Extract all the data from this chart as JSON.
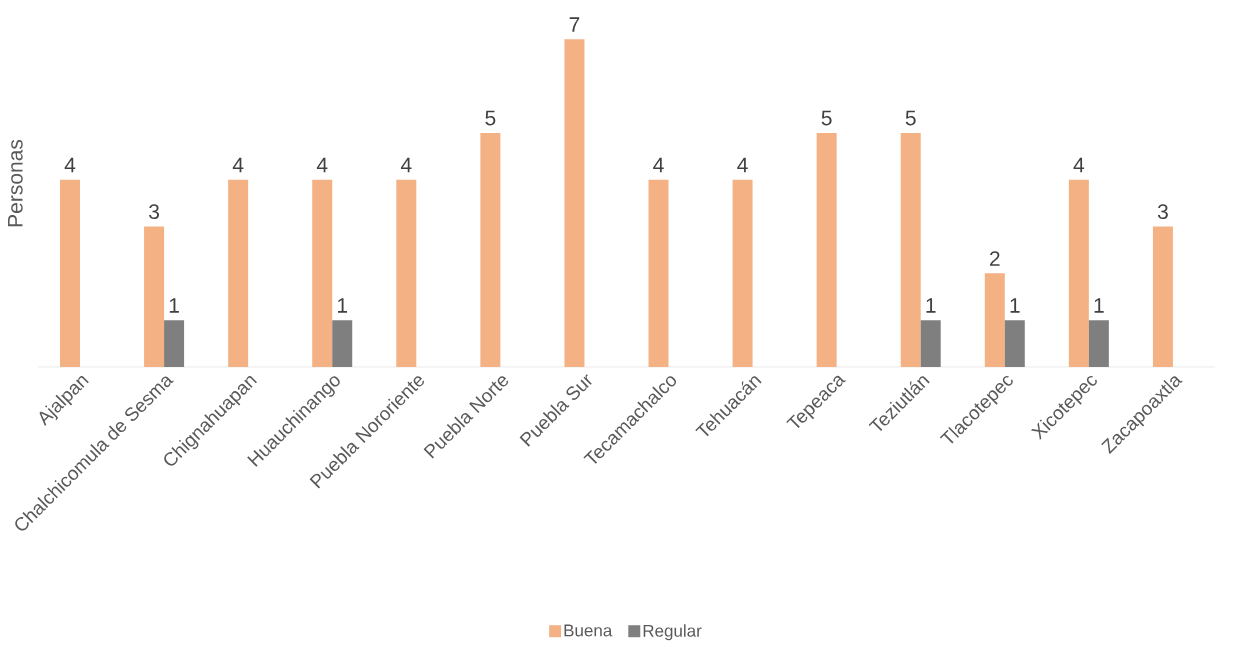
{
  "chart_data": {
    "type": "bar",
    "ylabel": "Personas",
    "categories": [
      "Ajalpan",
      "Chalchicomula de Sesma",
      "Chignahuapan",
      "Huauchinango",
      "Puebla Nororiente",
      "Puebla Norte",
      "Puebla Sur",
      "Tecamachalco",
      "Tehuacán",
      "Tepeaca",
      "Teziutlán",
      "Tlacotepec",
      "Xicotepec",
      "Zacapoaxtla"
    ],
    "series": [
      {
        "name": "Buena",
        "color": "#f4b183",
        "values": [
          4,
          3,
          4,
          4,
          4,
          5,
          7,
          4,
          4,
          5,
          5,
          2,
          4,
          3
        ]
      },
      {
        "name": "Regular",
        "color": "#7f7f7f",
        "values": [
          null,
          1,
          null,
          1,
          null,
          null,
          null,
          null,
          null,
          null,
          1,
          1,
          1,
          null
        ]
      }
    ],
    "data_labels": true,
    "legend": "bottom"
  }
}
